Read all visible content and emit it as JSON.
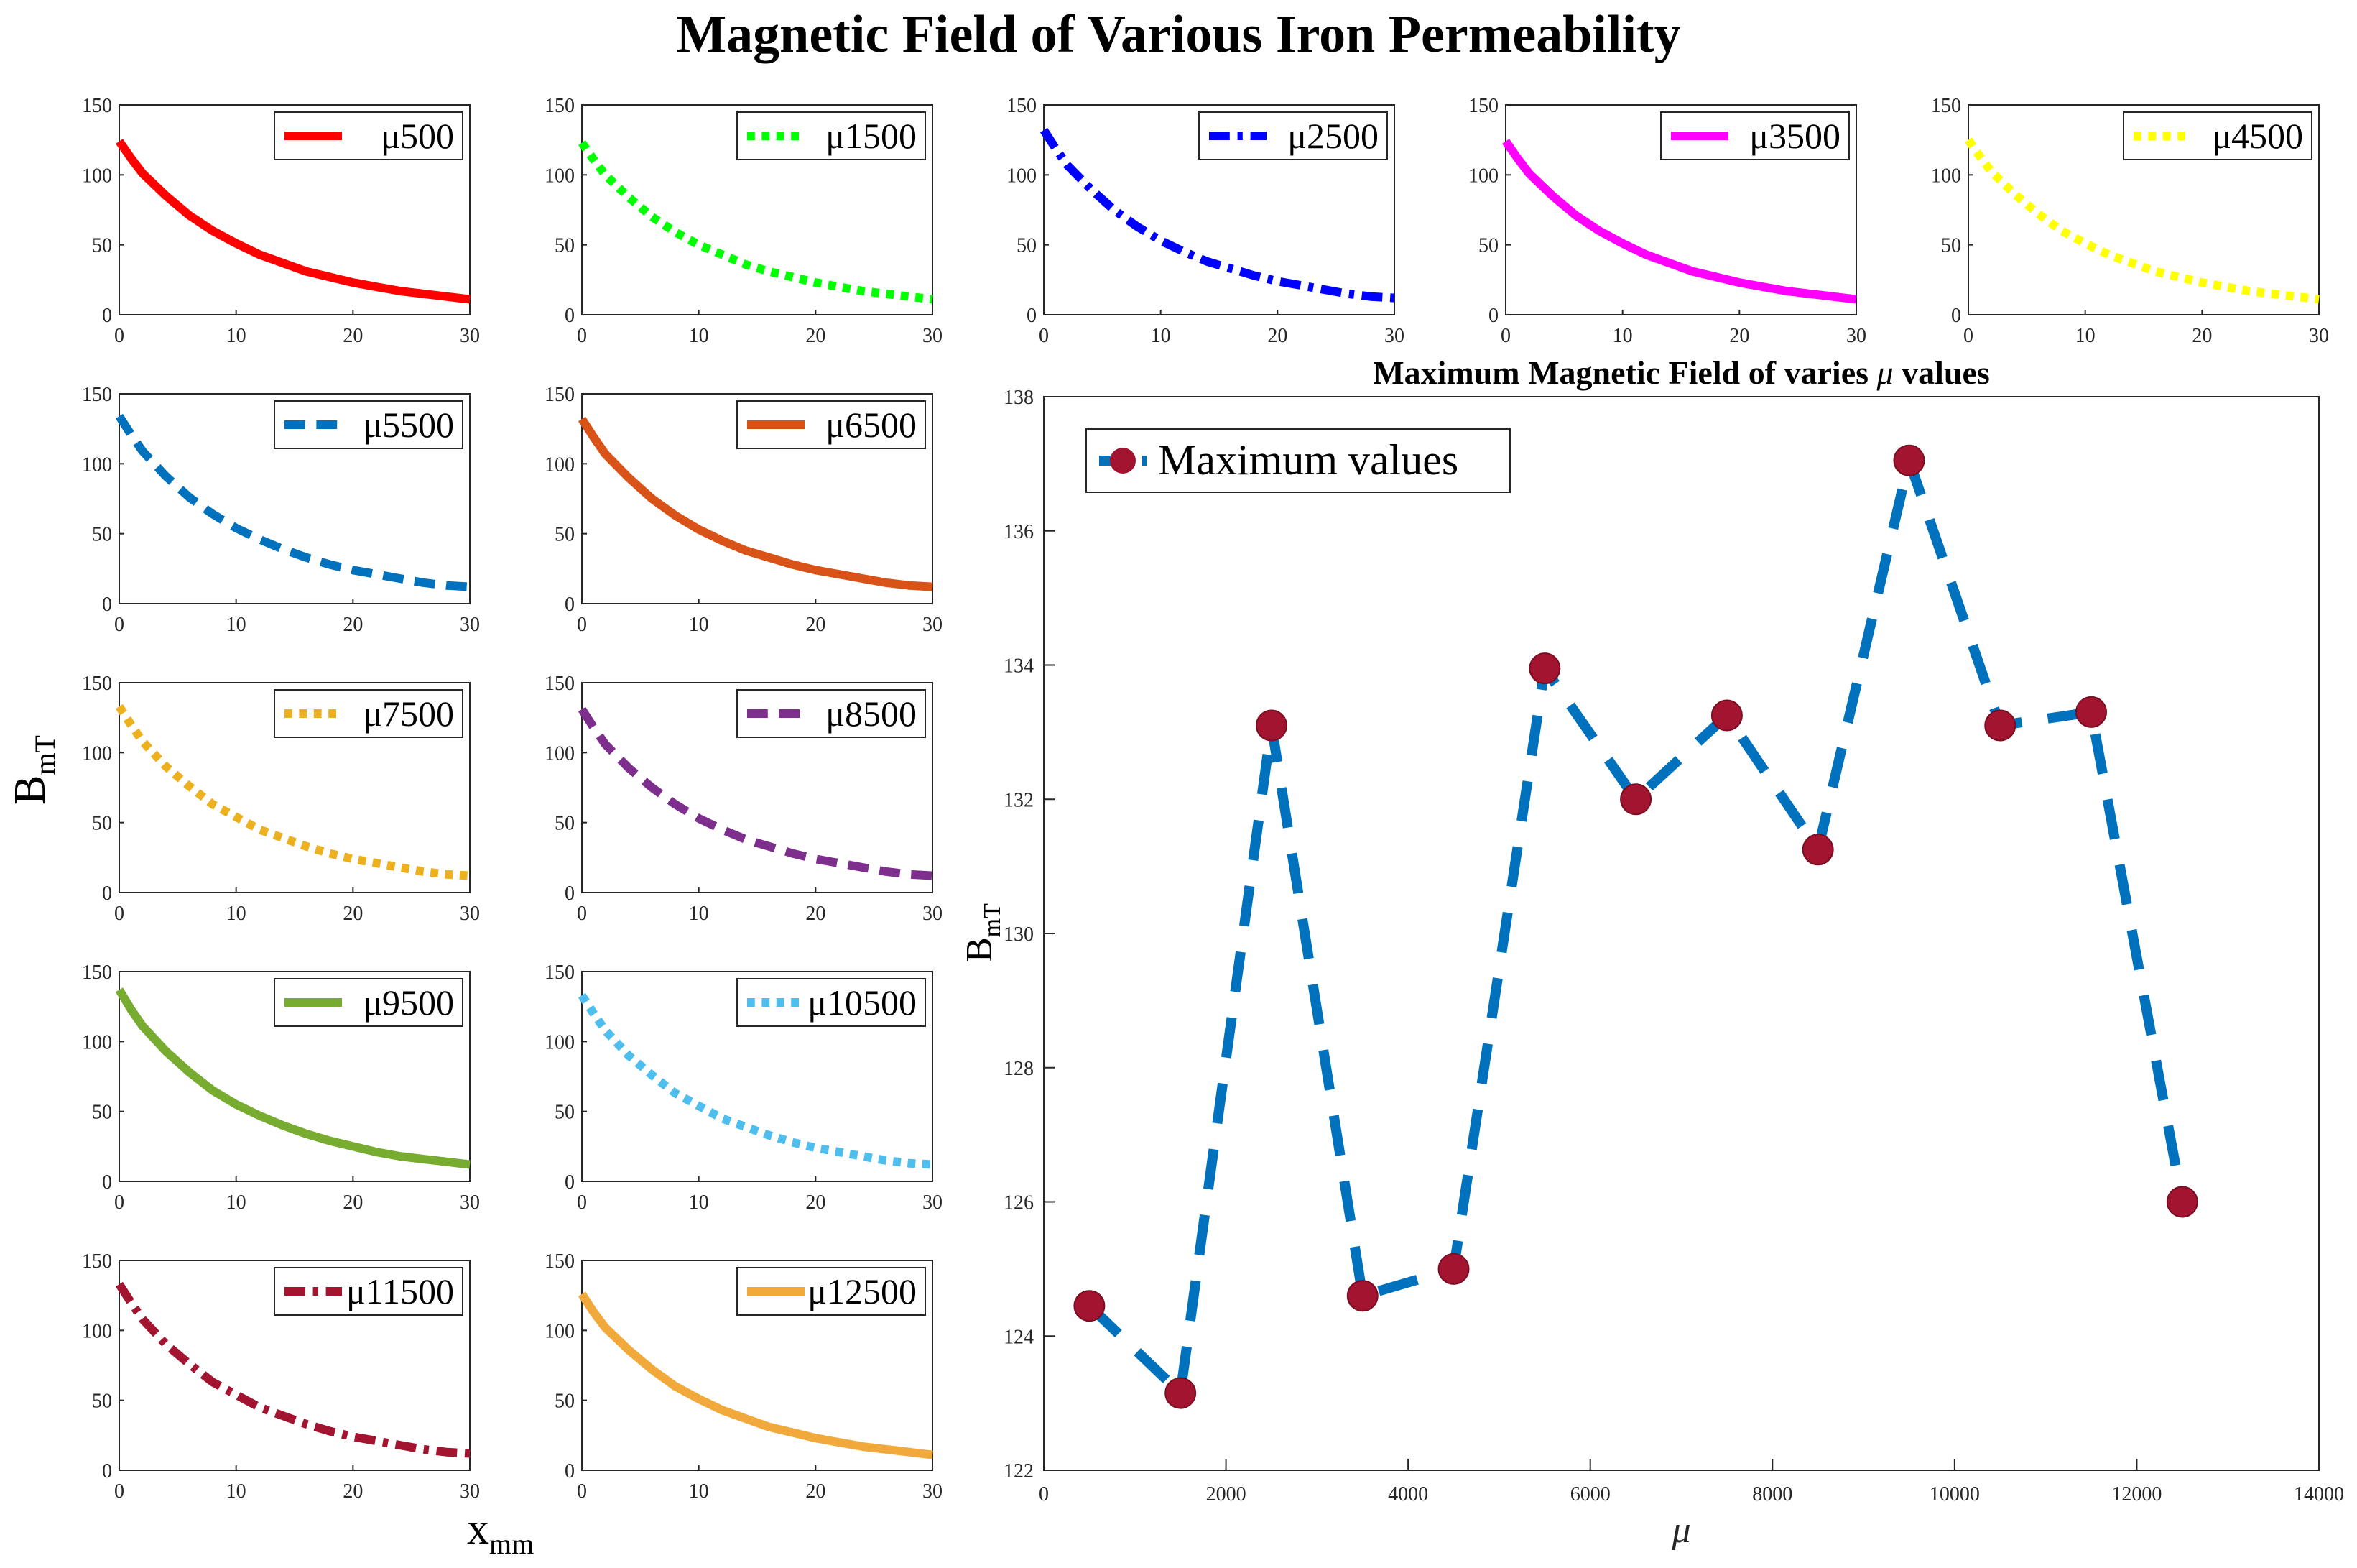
{
  "title": "Magnetic Field of Various Iron Permeability",
  "shared_labels": {
    "ylabel_main": "B",
    "ylabel_sub": "mT",
    "xlabel_main": "x",
    "xlabel_sub": "mm"
  },
  "colors": {
    "c500": "#ff0000",
    "c1500": "#00ff00",
    "c2500": "#0000ff",
    "c3500": "#ff00ff",
    "c4500": "#ffff00",
    "c5500": "#0072bd",
    "c6500": "#d95319",
    "c7500": "#edb120",
    "c8500": "#7e2f8e",
    "c9500": "#77ac30",
    "c10500": "#4dbeee",
    "c11500": "#a2142f",
    "c12500": "#f2a93b",
    "marker": "#a2142f",
    "maxline": "#0072bd"
  },
  "chart_data": [
    {
      "type": "line",
      "id": "mu500",
      "legend": "μ500",
      "color": "#ff0000",
      "dash": "solid",
      "x": [
        0,
        1,
        2,
        4,
        6,
        8,
        10,
        12,
        14,
        16,
        18,
        20,
        22,
        24,
        26,
        28,
        30
      ],
      "y": [
        124,
        112,
        101,
        85,
        71,
        60,
        51,
        43,
        37,
        31,
        27,
        23,
        20,
        17,
        15,
        13,
        11
      ],
      "xlim": [
        0,
        30
      ],
      "ylim": [
        0,
        150
      ],
      "xticks": [
        0,
        10,
        20,
        30
      ],
      "yticks": [
        0,
        50,
        100,
        150
      ]
    },
    {
      "type": "line",
      "id": "mu1500",
      "legend": "μ1500",
      "color": "#00ff00",
      "dash": "dotted",
      "x": [
        0,
        1,
        2,
        4,
        6,
        8,
        10,
        12,
        14,
        16,
        18,
        20,
        22,
        24,
        26,
        28,
        30
      ],
      "y": [
        123,
        111,
        100,
        84,
        70,
        59,
        50,
        43,
        36,
        31,
        27,
        23,
        20,
        17,
        15,
        13,
        11
      ],
      "xlim": [
        0,
        30
      ],
      "ylim": [
        0,
        150
      ],
      "xticks": [
        0,
        10,
        20,
        30
      ],
      "yticks": [
        0,
        50,
        100,
        150
      ]
    },
    {
      "type": "line",
      "id": "mu2500",
      "legend": "μ2500",
      "color": "#0000ff",
      "dash": "dashdot",
      "x": [
        0,
        1,
        2,
        4,
        6,
        8,
        10,
        12,
        14,
        16,
        18,
        20,
        22,
        24,
        26,
        28,
        30
      ],
      "y": [
        132,
        119,
        107,
        90,
        75,
        63,
        53,
        45,
        38,
        33,
        28,
        24,
        21,
        18,
        15,
        13,
        12
      ],
      "xlim": [
        0,
        30
      ],
      "ylim": [
        0,
        150
      ],
      "xticks": [
        0,
        10,
        20,
        30
      ],
      "yticks": [
        0,
        50,
        100,
        150
      ]
    },
    {
      "type": "line",
      "id": "mu3500",
      "legend": "μ3500",
      "color": "#ff00ff",
      "dash": "solid",
      "x": [
        0,
        1,
        2,
        4,
        6,
        8,
        10,
        12,
        14,
        16,
        18,
        20,
        22,
        24,
        26,
        28,
        30
      ],
      "y": [
        124,
        112,
        101,
        85,
        71,
        60,
        51,
        43,
        37,
        31,
        27,
        23,
        20,
        17,
        15,
        13,
        11
      ],
      "xlim": [
        0,
        30
      ],
      "ylim": [
        0,
        150
      ],
      "xticks": [
        0,
        10,
        20,
        30
      ],
      "yticks": [
        0,
        50,
        100,
        150
      ]
    },
    {
      "type": "line",
      "id": "mu4500",
      "legend": "μ4500",
      "color": "#ffff00",
      "dash": "dotted",
      "x": [
        0,
        1,
        2,
        4,
        6,
        8,
        10,
        12,
        14,
        16,
        18,
        20,
        22,
        24,
        26,
        28,
        30
      ],
      "y": [
        125,
        113,
        102,
        86,
        72,
        60,
        51,
        43,
        37,
        31,
        27,
        23,
        20,
        17,
        15,
        13,
        11
      ],
      "xlim": [
        0,
        30
      ],
      "ylim": [
        0,
        150
      ],
      "xticks": [
        0,
        10,
        20,
        30
      ],
      "yticks": [
        0,
        50,
        100,
        150
      ]
    },
    {
      "type": "line",
      "id": "mu5500",
      "legend": "μ5500",
      "color": "#0072bd",
      "dash": "dashed",
      "x": [
        0,
        1,
        2,
        4,
        6,
        8,
        10,
        12,
        14,
        16,
        18,
        20,
        22,
        24,
        26,
        28,
        30
      ],
      "y": [
        134,
        121,
        109,
        91,
        76,
        64,
        54,
        46,
        39,
        33,
        28,
        24,
        21,
        18,
        15,
        13,
        12
      ],
      "xlim": [
        0,
        30
      ],
      "ylim": [
        0,
        150
      ],
      "xticks": [
        0,
        10,
        20,
        30
      ],
      "yticks": [
        0,
        50,
        100,
        150
      ]
    },
    {
      "type": "line",
      "id": "mu6500",
      "legend": "μ6500",
      "color": "#d95319",
      "dash": "solid",
      "x": [
        0,
        1,
        2,
        4,
        6,
        8,
        10,
        12,
        14,
        16,
        18,
        20,
        22,
        24,
        26,
        28,
        30
      ],
      "y": [
        132,
        119,
        107,
        90,
        75,
        63,
        53,
        45,
        38,
        33,
        28,
        24,
        21,
        18,
        15,
        13,
        12
      ],
      "xlim": [
        0,
        30
      ],
      "ylim": [
        0,
        150
      ],
      "xticks": [
        0,
        10,
        20,
        30
      ],
      "yticks": [
        0,
        50,
        100,
        150
      ]
    },
    {
      "type": "line",
      "id": "mu7500",
      "legend": "μ7500",
      "color": "#edb120",
      "dash": "dotted",
      "x": [
        0,
        1,
        2,
        4,
        6,
        8,
        10,
        12,
        14,
        16,
        18,
        20,
        22,
        24,
        26,
        28,
        30
      ],
      "y": [
        133,
        120,
        108,
        90,
        76,
        63,
        54,
        45,
        39,
        33,
        28,
        24,
        21,
        18,
        15,
        13,
        12
      ],
      "xlim": [
        0,
        30
      ],
      "ylim": [
        0,
        150
      ],
      "xticks": [
        0,
        10,
        20,
        30
      ],
      "yticks": [
        0,
        50,
        100,
        150
      ]
    },
    {
      "type": "line",
      "id": "mu8500",
      "legend": "μ8500",
      "color": "#7e2f8e",
      "dash": "dashed",
      "x": [
        0,
        1,
        2,
        4,
        6,
        8,
        10,
        12,
        14,
        16,
        18,
        20,
        22,
        24,
        26,
        28,
        30
      ],
      "y": [
        131,
        118,
        106,
        89,
        75,
        63,
        53,
        45,
        38,
        33,
        28,
        24,
        21,
        18,
        15,
        13,
        12
      ],
      "xlim": [
        0,
        30
      ],
      "ylim": [
        0,
        150
      ],
      "xticks": [
        0,
        10,
        20,
        30
      ],
      "yticks": [
        0,
        50,
        100,
        150
      ]
    },
    {
      "type": "line",
      "id": "mu9500",
      "legend": "μ9500",
      "color": "#77ac30",
      "dash": "solid",
      "x": [
        0,
        1,
        2,
        4,
        6,
        8,
        10,
        12,
        14,
        16,
        18,
        20,
        22,
        24,
        26,
        28,
        30
      ],
      "y": [
        137,
        123,
        111,
        93,
        78,
        65,
        55,
        47,
        40,
        34,
        29,
        25,
        21,
        18,
        16,
        14,
        12
      ],
      "xlim": [
        0,
        30
      ],
      "ylim": [
        0,
        150
      ],
      "xticks": [
        0,
        10,
        20,
        30
      ],
      "yticks": [
        0,
        50,
        100,
        150
      ]
    },
    {
      "type": "line",
      "id": "mu10500",
      "legend": "μ10500",
      "color": "#4dbeee",
      "dash": "dotted",
      "x": [
        0,
        1,
        2,
        4,
        6,
        8,
        10,
        12,
        14,
        16,
        18,
        20,
        22,
        24,
        26,
        28,
        30
      ],
      "y": [
        133,
        120,
        108,
        90,
        76,
        63,
        54,
        45,
        39,
        33,
        28,
        24,
        21,
        18,
        15,
        13,
        12
      ],
      "xlim": [
        0,
        30
      ],
      "ylim": [
        0,
        150
      ],
      "xticks": [
        0,
        10,
        20,
        30
      ],
      "yticks": [
        0,
        50,
        100,
        150
      ]
    },
    {
      "type": "line",
      "id": "mu11500",
      "legend": "μ11500",
      "color": "#a2142f",
      "dash": "dashdot",
      "x": [
        0,
        1,
        2,
        4,
        6,
        8,
        10,
        12,
        14,
        16,
        18,
        20,
        22,
        24,
        26,
        28,
        30
      ],
      "y": [
        133,
        120,
        108,
        90,
        76,
        63,
        54,
        45,
        39,
        33,
        28,
        24,
        21,
        18,
        15,
        13,
        12
      ],
      "xlim": [
        0,
        30
      ],
      "ylim": [
        0,
        150
      ],
      "xticks": [
        0,
        10,
        20,
        30
      ],
      "yticks": [
        0,
        50,
        100,
        150
      ]
    },
    {
      "type": "line",
      "id": "mu12500",
      "legend": "μ12500",
      "color": "#f2a93b",
      "dash": "solid",
      "x": [
        0,
        1,
        2,
        4,
        6,
        8,
        10,
        12,
        14,
        16,
        18,
        20,
        22,
        24,
        26,
        28,
        30
      ],
      "y": [
        126,
        113,
        102,
        86,
        72,
        60,
        51,
        43,
        37,
        31,
        27,
        23,
        20,
        17,
        15,
        13,
        11
      ],
      "xlim": [
        0,
        30
      ],
      "ylim": [
        0,
        150
      ],
      "xticks": [
        0,
        10,
        20,
        30
      ],
      "yticks": [
        0,
        50,
        100,
        150
      ]
    },
    {
      "type": "line",
      "id": "max",
      "title_prefix": "Maximum Magnetic Field of varies ",
      "title_symbol": "μ",
      "title_suffix": " values",
      "legend": "Maximum values",
      "color": "#0072bd",
      "marker_color": "#a2142f",
      "dash": "dashed",
      "xlabel": "μ",
      "ylabel": "B",
      "ylabel_sub": "mT",
      "x": [
        500,
        1500,
        2500,
        3500,
        4500,
        5500,
        6500,
        7500,
        8500,
        9500,
        10500,
        11500,
        12500
      ],
      "y": [
        124.45,
        123.15,
        133.1,
        124.6,
        125.0,
        133.95,
        132.0,
        133.25,
        131.25,
        137.05,
        133.1,
        133.3,
        126.0
      ],
      "xlim": [
        0,
        14000
      ],
      "ylim": [
        122,
        138
      ],
      "xticks": [
        0,
        2000,
        4000,
        6000,
        8000,
        10000,
        12000,
        14000
      ],
      "yticks": [
        122,
        124,
        126,
        128,
        130,
        132,
        134,
        136,
        138
      ]
    }
  ]
}
